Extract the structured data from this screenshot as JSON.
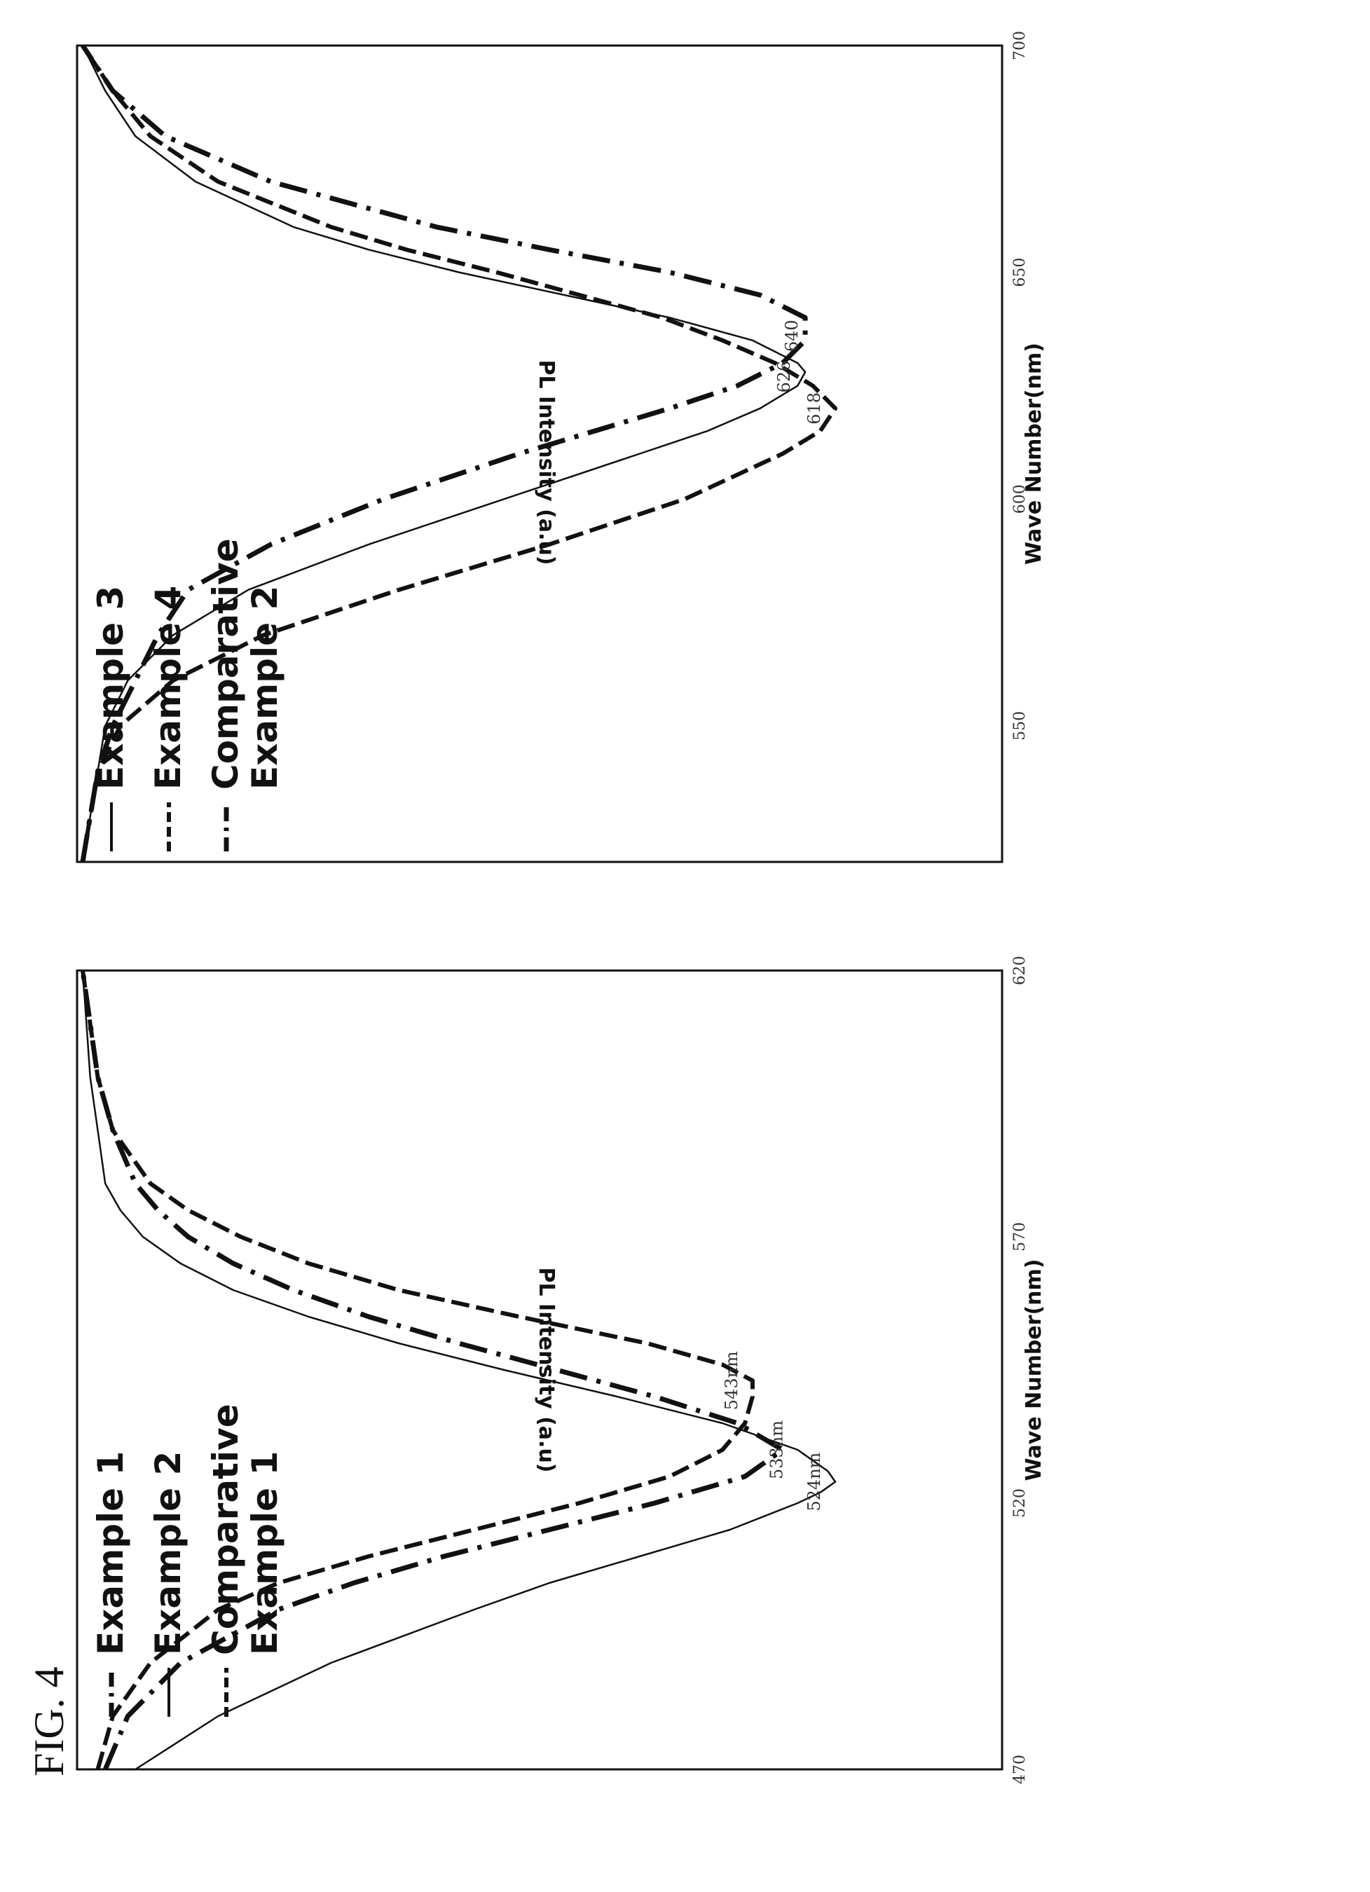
{
  "figure": {
    "label": "FIG. 4"
  },
  "chart_data": [
    {
      "type": "line",
      "xlabel": "Wave Number(nm)",
      "ylabel": "PL Intensity (a.u)",
      "xlim": [
        470,
        620
      ],
      "xticks": [
        "470",
        "520",
        "570",
        "620"
      ],
      "ylim": [
        0,
        1
      ],
      "grid": false,
      "legend_position": "top-right",
      "series": [
        {
          "name": "Example 1",
          "style": "dash-dot",
          "x": [
            470,
            480,
            490,
            500,
            505,
            510,
            515,
            520,
            525,
            530,
            535,
            540,
            545,
            550,
            555,
            560,
            565,
            570,
            575,
            580,
            590,
            600,
            610,
            620
          ],
          "y": [
            0.03,
            0.06,
            0.13,
            0.26,
            0.36,
            0.48,
            0.62,
            0.76,
            0.88,
            0.93,
            0.87,
            0.76,
            0.63,
            0.5,
            0.38,
            0.28,
            0.2,
            0.14,
            0.1,
            0.07,
            0.04,
            0.02,
            0.01,
            0.0
          ]
        },
        {
          "name": "Example 2",
          "style": "solid",
          "x": [
            470,
            480,
            490,
            500,
            505,
            510,
            515,
            520,
            522,
            524,
            526,
            530,
            535,
            540,
            545,
            550,
            555,
            560,
            565,
            570,
            575,
            580,
            590,
            600,
            610,
            620
          ],
          "y": [
            0.07,
            0.18,
            0.33,
            0.52,
            0.62,
            0.74,
            0.86,
            0.95,
            0.98,
            1.0,
            0.99,
            0.95,
            0.85,
            0.71,
            0.56,
            0.42,
            0.3,
            0.2,
            0.13,
            0.08,
            0.05,
            0.03,
            0.02,
            0.01,
            0.005,
            0.0
          ]
        },
        {
          "name": "Comparative Example 1",
          "style": "dashed",
          "x": [
            470,
            480,
            490,
            500,
            505,
            510,
            515,
            520,
            525,
            530,
            535,
            540,
            543,
            546,
            550,
            555,
            560,
            565,
            570,
            575,
            580,
            590,
            600,
            610,
            620
          ],
          "y": [
            0.02,
            0.04,
            0.09,
            0.18,
            0.26,
            0.38,
            0.52,
            0.66,
            0.78,
            0.85,
            0.88,
            0.89,
            0.89,
            0.85,
            0.75,
            0.58,
            0.42,
            0.3,
            0.21,
            0.14,
            0.09,
            0.04,
            0.02,
            0.01,
            0.0
          ]
        }
      ],
      "annotations": [
        {
          "text": "524nm",
          "x": 524,
          "y": 1.0
        },
        {
          "text": "533nm",
          "x": 530,
          "y": 0.95
        },
        {
          "text": "543nm",
          "x": 543,
          "y": 0.89
        }
      ]
    },
    {
      "type": "line",
      "xlabel": "Wave Number(nm)",
      "ylabel": "PL Intensity (a.u)",
      "xlim": [
        520,
        700
      ],
      "xticks": [
        "550",
        "600",
        "650",
        "700"
      ],
      "ylim": [
        0,
        1
      ],
      "grid": false,
      "legend_position": "top-right",
      "series": [
        {
          "name": "Example 3",
          "style": "solid",
          "x": [
            520,
            530,
            540,
            550,
            560,
            570,
            580,
            590,
            600,
            610,
            615,
            620,
            625,
            628,
            630,
            635,
            640,
            645,
            650,
            655,
            660,
            670,
            680,
            690,
            700
          ],
          "y": [
            0.0,
            0.01,
            0.02,
            0.03,
            0.06,
            0.12,
            0.22,
            0.38,
            0.56,
            0.74,
            0.83,
            0.9,
            0.95,
            0.96,
            0.95,
            0.89,
            0.78,
            0.64,
            0.5,
            0.38,
            0.28,
            0.15,
            0.07,
            0.03,
            0.0
          ]
        },
        {
          "name": "Example 4",
          "style": "dashed",
          "x": [
            520,
            530,
            540,
            550,
            560,
            570,
            580,
            590,
            600,
            610,
            615,
            620,
            625,
            630,
            635,
            640,
            645,
            650,
            655,
            660,
            670,
            680,
            690,
            700
          ],
          "y": [
            0.0,
            0.01,
            0.02,
            0.05,
            0.12,
            0.24,
            0.42,
            0.62,
            0.8,
            0.93,
            0.98,
            1.0,
            0.97,
            0.92,
            0.85,
            0.77,
            0.66,
            0.55,
            0.43,
            0.33,
            0.18,
            0.09,
            0.04,
            0.0
          ]
        },
        {
          "name": "Comparative Example 2",
          "style": "dash-dot",
          "x": [
            520,
            530,
            540,
            550,
            560,
            570,
            580,
            590,
            600,
            610,
            615,
            620,
            625,
            630,
            635,
            640,
            645,
            650,
            655,
            660,
            670,
            680,
            690,
            700
          ],
          "y": [
            0.0,
            0.01,
            0.02,
            0.04,
            0.07,
            0.1,
            0.14,
            0.25,
            0.4,
            0.58,
            0.68,
            0.78,
            0.87,
            0.93,
            0.96,
            0.96,
            0.9,
            0.78,
            0.62,
            0.47,
            0.25,
            0.11,
            0.04,
            0.0
          ]
        }
      ],
      "annotations": [
        {
          "text": "618",
          "x": 620,
          "y": 1.0
        },
        {
          "text": "626",
          "x": 627,
          "y": 0.96
        },
        {
          "text": "640",
          "x": 636,
          "y": 0.97
        }
      ]
    }
  ]
}
